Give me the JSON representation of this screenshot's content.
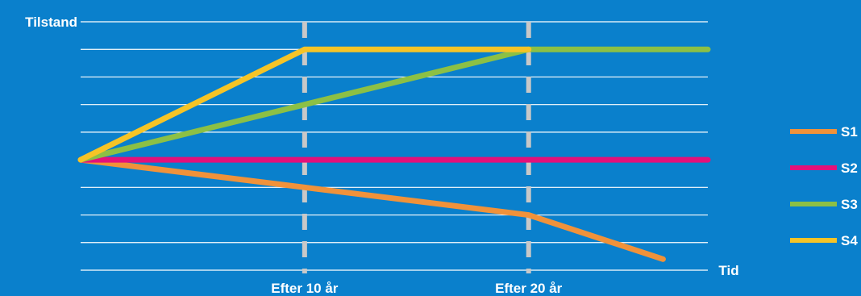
{
  "chart_data": {
    "type": "line",
    "ylabel": "Tilstand",
    "xlabel": "Tid",
    "x_markers": [
      {
        "x": 10,
        "label": "Efter 10 år"
      },
      {
        "x": 20,
        "label": "Efter 20 år"
      }
    ],
    "xlim": [
      0,
      28
    ],
    "ylim": [
      0,
      9
    ],
    "grid": true,
    "legend_position": "right",
    "series": [
      {
        "name": "S1",
        "color": "#f0923a",
        "x": [
          0,
          10,
          20,
          26
        ],
        "y": [
          4,
          3,
          2,
          0.4
        ]
      },
      {
        "name": "S2",
        "color": "#e4117a",
        "x": [
          0,
          28
        ],
        "y": [
          4,
          4
        ]
      },
      {
        "name": "S3",
        "color": "#8cc045",
        "x": [
          0,
          10,
          20,
          28
        ],
        "y": [
          4,
          6,
          8,
          8
        ]
      },
      {
        "name": "S4",
        "color": "#f6c426",
        "x": [
          0,
          10,
          20
        ],
        "y": [
          4,
          8,
          8
        ]
      }
    ]
  },
  "colors": {
    "background": "#0a80cc",
    "grid": "#ffffff",
    "marker": "#c8c8c8"
  }
}
